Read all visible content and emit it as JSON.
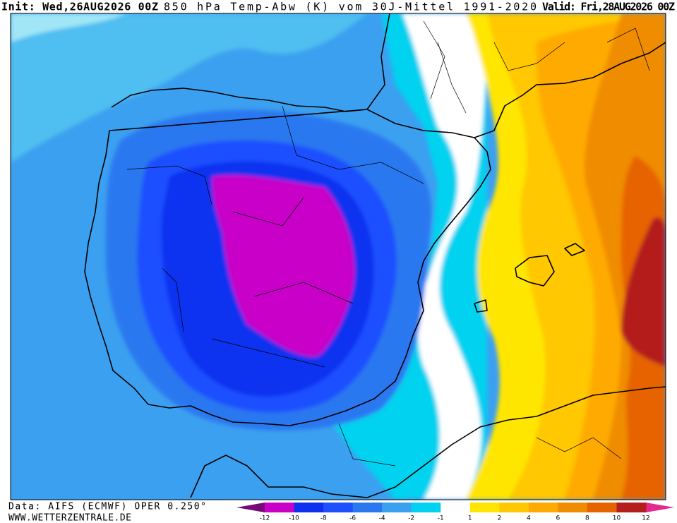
{
  "header": {
    "init": "Init: Wed,26AUG2026 00Z",
    "title": "850 hPa Temp-Abw (K) vom 30J-Mittel 1991-2020",
    "valid": "Valid: Fri,28AUG2026 00Z"
  },
  "footer": {
    "source": "Data: AIFS (ECMWF) OPER 0.250°",
    "website": "WWW.WETTERZENTRALE.DE"
  },
  "legend": {
    "labels": [
      "-12",
      "-10",
      "-8",
      "-6",
      "-4",
      "-2",
      "-1",
      "1",
      "2",
      "4",
      "6",
      "8",
      "10",
      "12"
    ]
  }
}
